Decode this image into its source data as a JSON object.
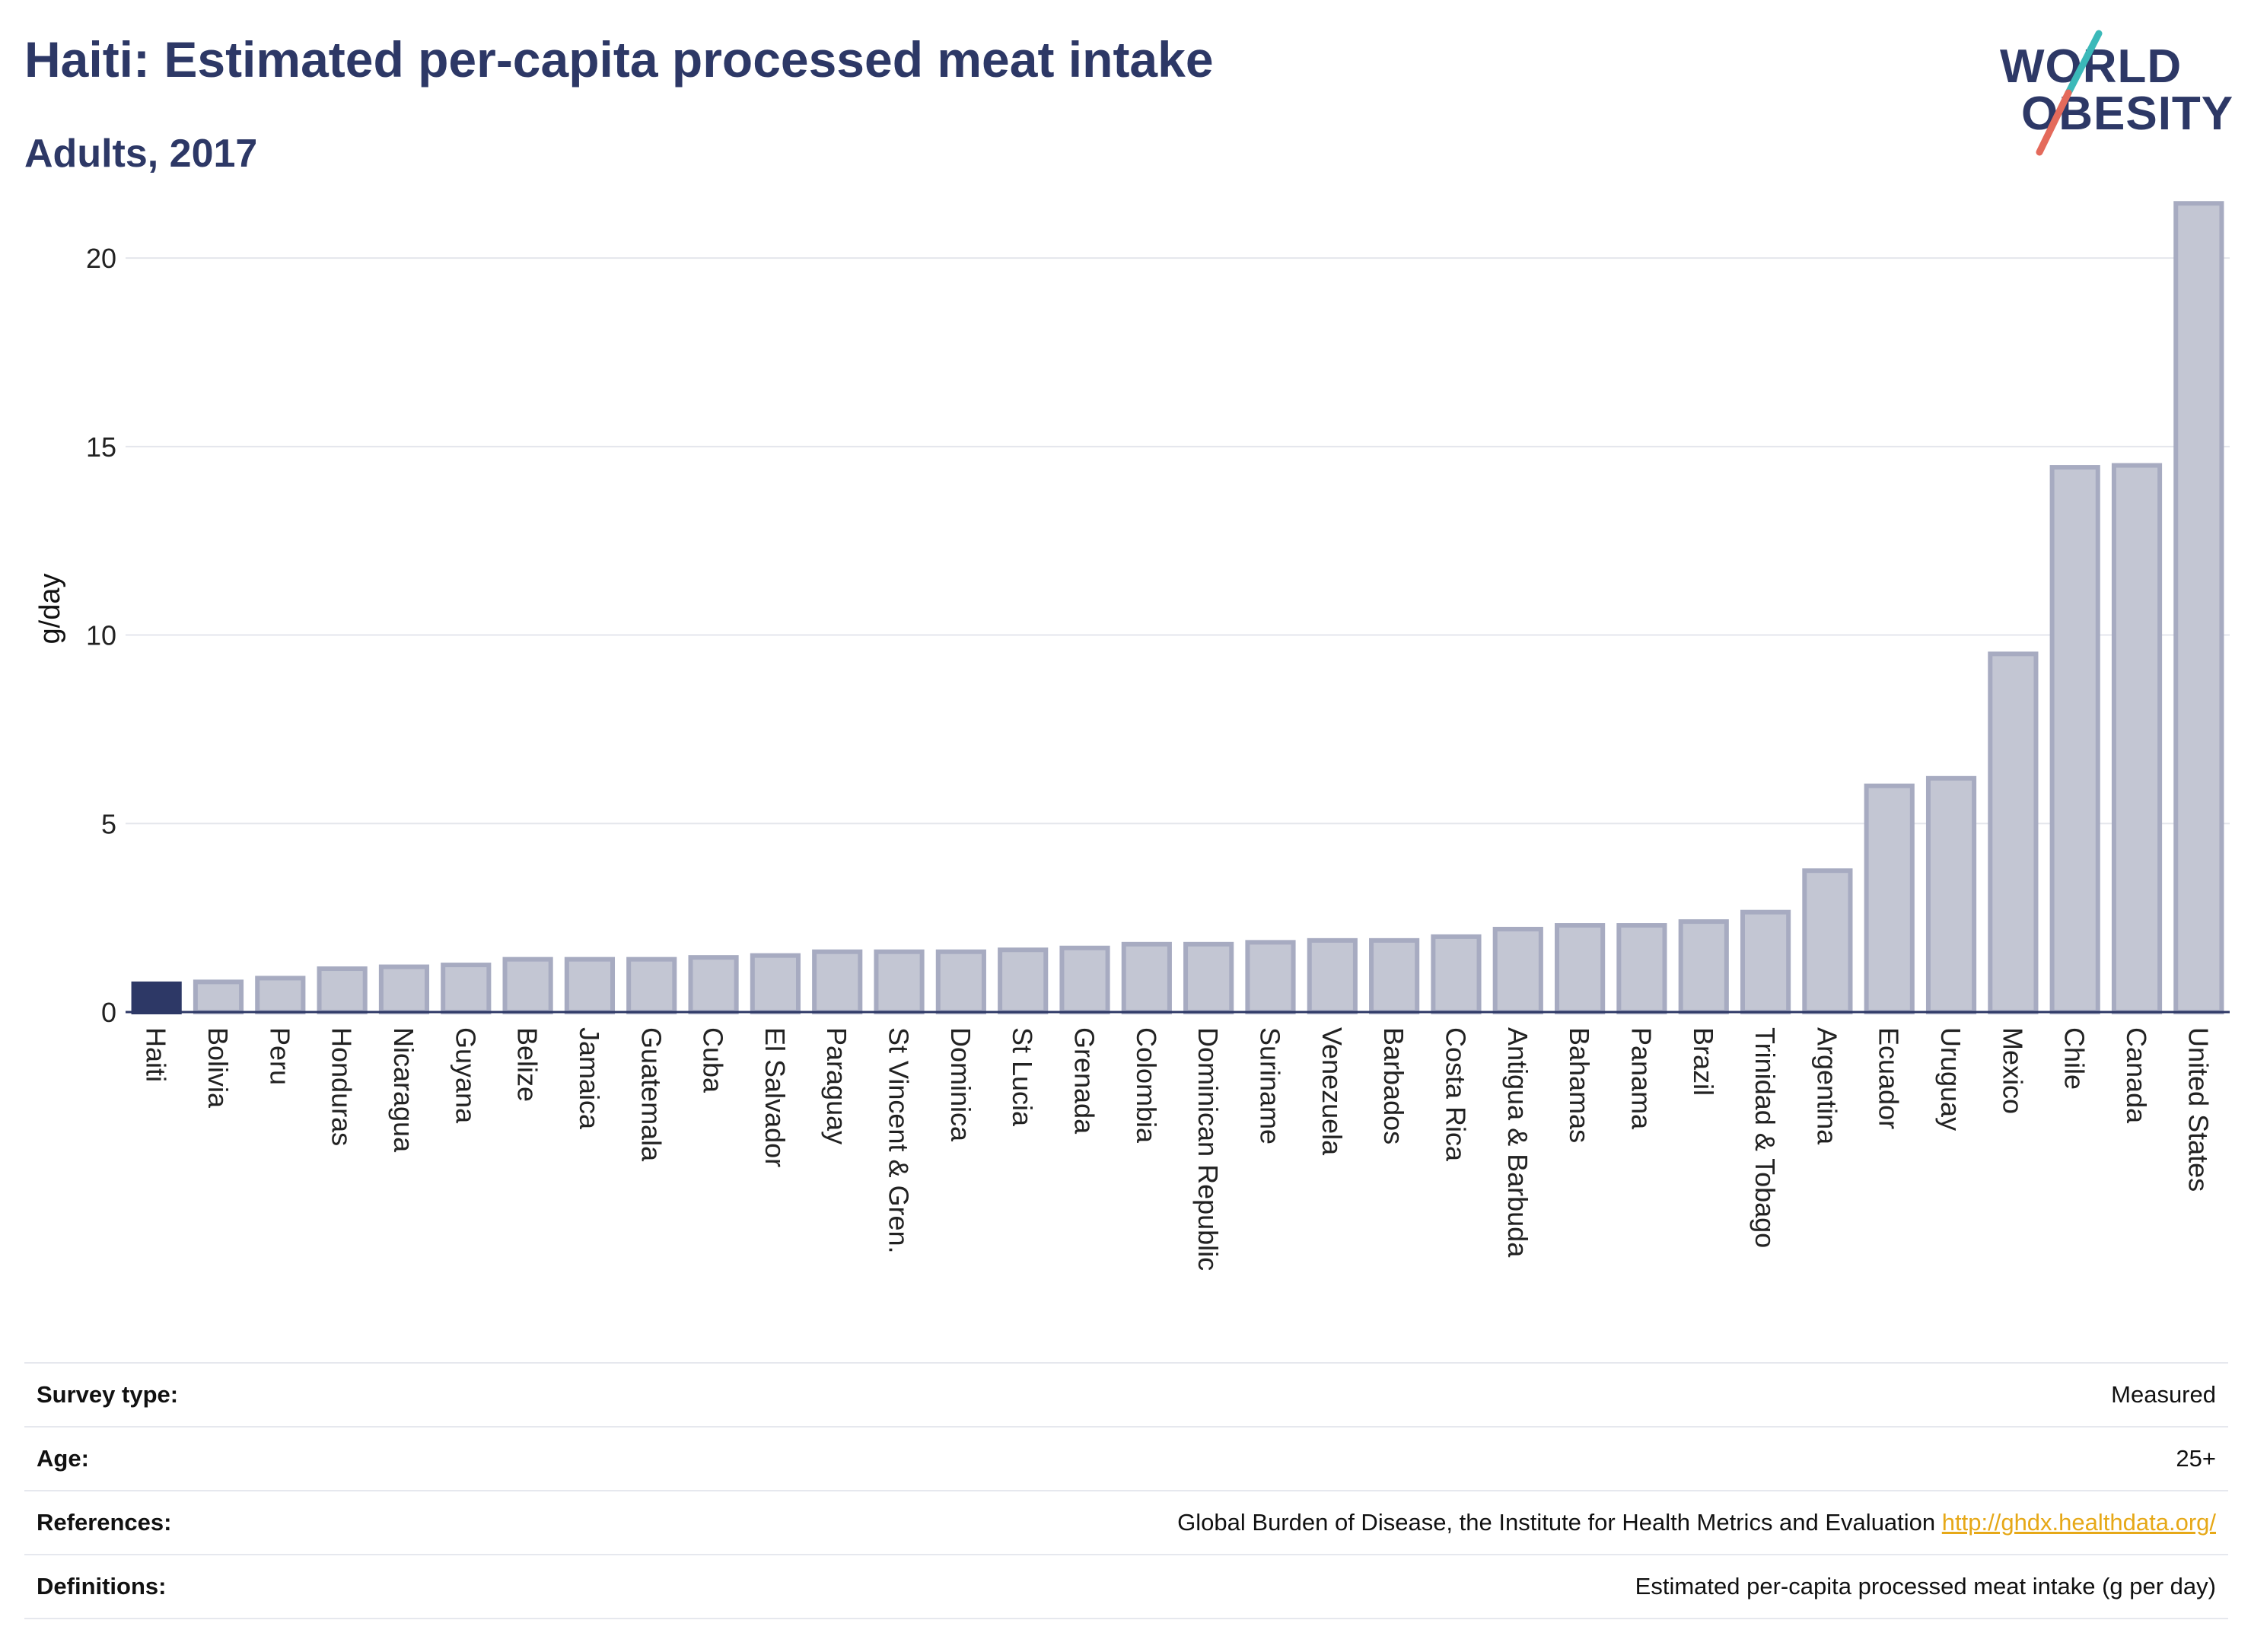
{
  "title": "Haiti: Estimated per-capita processed meat intake",
  "subtitle": "Adults, 2017",
  "logo": {
    "line1": "WORLD",
    "line2": "OBESITY"
  },
  "colors": {
    "highlight": "#2d3866",
    "bar_fill": "#c3c6d3",
    "bar_stroke": "#a7abc1",
    "text_dark": "#2d3866",
    "link": "#e6a817",
    "logo_teal": "#3bb9b9",
    "logo_coral": "#e46a5b"
  },
  "chart_data": {
    "type": "bar",
    "title": "Haiti: Estimated per-capita processed meat intake",
    "subtitle": "Adults, 2017",
    "ylabel": "g/day",
    "xlabel": "",
    "ylim": [
      0,
      22
    ],
    "yticks": [
      0,
      5,
      10,
      15,
      20
    ],
    "grid": true,
    "highlight": "Haiti",
    "categories": [
      "Haiti",
      "Bolivia",
      "Peru",
      "Honduras",
      "Nicaragua",
      "Guyana",
      "Belize",
      "Jamaica",
      "Guatemala",
      "Cuba",
      "El Salvador",
      "Paraguay",
      "St Vincent & Gren.",
      "Dominica",
      "St Lucia",
      "Grenada",
      "Colombia",
      "Dominican Republic",
      "Suriname",
      "Venezuela",
      "Barbados",
      "Costa Rica",
      "Antigua & Barbuda",
      "Bahamas",
      "Panama",
      "Brazil",
      "Trinidad & Tobago",
      "Argentina",
      "Ecuador",
      "Uruguay",
      "Mexico",
      "Chile",
      "Canada",
      "United States"
    ],
    "values": [
      0.75,
      0.8,
      0.9,
      1.15,
      1.2,
      1.25,
      1.4,
      1.4,
      1.4,
      1.45,
      1.5,
      1.6,
      1.6,
      1.6,
      1.65,
      1.7,
      1.8,
      1.8,
      1.85,
      1.9,
      1.9,
      2.0,
      2.2,
      2.3,
      2.3,
      2.4,
      2.65,
      3.75,
      6.0,
      6.2,
      9.5,
      14.45,
      14.5,
      21.45
    ]
  },
  "info": [
    {
      "label": "Survey type:",
      "value": "Measured",
      "link": ""
    },
    {
      "label": "Age:",
      "value": "25+",
      "link": ""
    },
    {
      "label": "References:",
      "value": "Global Burden of Disease, the Institute for Health Metrics and Evaluation",
      "link": "http://ghdx.healthdata.org/"
    },
    {
      "label": "Definitions:",
      "value": "Estimated per-capita processed meat intake (g per day)",
      "link": ""
    }
  ]
}
